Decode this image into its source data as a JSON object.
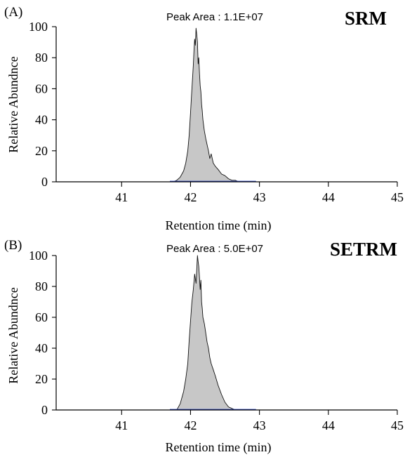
{
  "chart_data": [
    {
      "type": "area",
      "panel_label": "(A)",
      "annotation": "Peak Area : 1.1E+07",
      "method_label": "SRM",
      "xlabel": "Retention time (min)",
      "ylabel": "Relative Abundnce",
      "xlim": [
        40.05,
        45
      ],
      "ylim": [
        0,
        100
      ],
      "xticks": [
        "41",
        "42",
        "43",
        "44",
        "45"
      ],
      "yticks": [
        "0",
        "20",
        "40",
        "60",
        "80",
        "100"
      ],
      "colors": {
        "fill": "#c7c7c7",
        "outline": "#111111",
        "baseline": "#2e49c4"
      },
      "baseline_range": [
        41.7,
        42.95
      ],
      "x": [
        41.75,
        41.8,
        41.85,
        41.9,
        41.93,
        41.96,
        41.98,
        42.0,
        42.02,
        42.04,
        42.05,
        42.06,
        42.07,
        42.08,
        42.09,
        42.1,
        42.11,
        42.12,
        42.13,
        42.14,
        42.15,
        42.16,
        42.17,
        42.18,
        42.2,
        42.22,
        42.24,
        42.26,
        42.28,
        42.3,
        42.33,
        42.36,
        42.4,
        42.45,
        42.5,
        42.55,
        42.6,
        42.65,
        42.7
      ],
      "y": [
        0,
        1,
        3,
        7,
        12,
        20,
        30,
        45,
        60,
        75,
        85,
        92,
        88,
        99,
        95,
        90,
        76,
        80,
        70,
        62,
        58,
        50,
        46,
        40,
        33,
        28,
        24,
        20,
        15,
        18,
        12,
        10,
        8,
        5,
        4,
        2,
        1,
        1,
        0
      ]
    },
    {
      "type": "area",
      "panel_label": "(B)",
      "annotation": "Peak Area : 5.0E+07",
      "method_label": "SETRM",
      "xlabel": "Retention time (min)",
      "ylabel": "Relative Abundnce",
      "xlim": [
        40.05,
        45
      ],
      "ylim": [
        0,
        100
      ],
      "xticks": [
        "41",
        "42",
        "43",
        "44",
        "45"
      ],
      "yticks": [
        "0",
        "20",
        "40",
        "60",
        "80",
        "100"
      ],
      "colors": {
        "fill": "#c7c7c7",
        "outline": "#111111",
        "baseline": "#2e49c4"
      },
      "baseline_range": [
        41.7,
        42.95
      ],
      "x": [
        41.8,
        41.85,
        41.9,
        41.93,
        41.96,
        41.98,
        42.0,
        42.02,
        42.04,
        42.06,
        42.08,
        42.1,
        42.11,
        42.12,
        42.13,
        42.14,
        42.15,
        42.16,
        42.17,
        42.18,
        42.2,
        42.22,
        42.24,
        42.26,
        42.28,
        42.3,
        42.33,
        42.36,
        42.4,
        42.45,
        42.5,
        42.55,
        42.6,
        42.65
      ],
      "y": [
        0,
        4,
        12,
        20,
        30,
        45,
        58,
        70,
        78,
        88,
        82,
        100,
        96,
        93,
        86,
        78,
        84,
        70,
        66,
        60,
        56,
        50,
        44,
        40,
        34,
        30,
        26,
        22,
        16,
        10,
        5,
        2,
        1,
        0
      ]
    }
  ]
}
